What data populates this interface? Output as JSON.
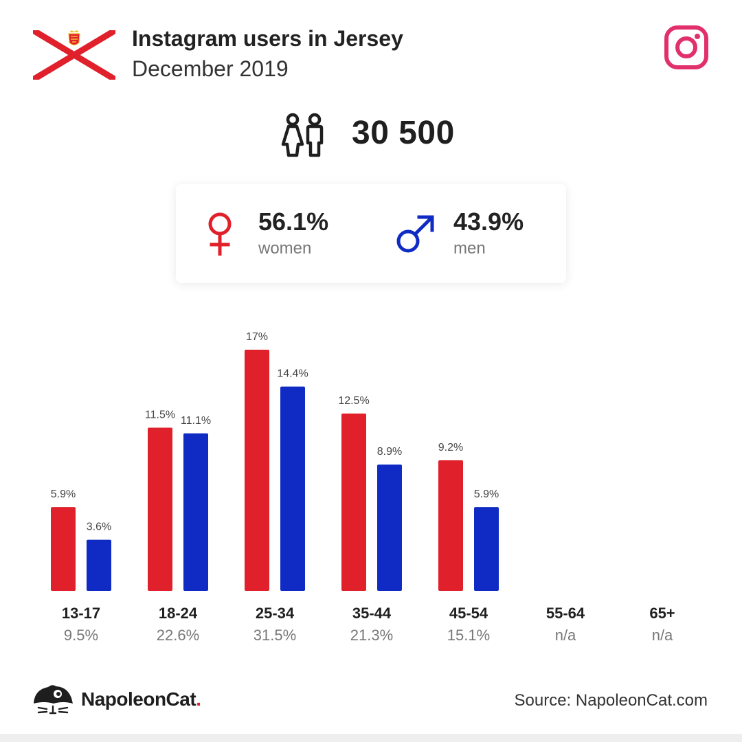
{
  "header": {
    "title": "Instagram users in Jersey",
    "subtitle": "December 2019"
  },
  "summary": {
    "total_users": "30 500"
  },
  "gender": {
    "women_pct": "56.1%",
    "women_label": "women",
    "men_pct": "43.9%",
    "men_label": "men"
  },
  "chart_data": {
    "type": "bar",
    "categories": [
      "13-17",
      "18-24",
      "25-34",
      "35-44",
      "45-54",
      "55-64",
      "65+"
    ],
    "category_totals": [
      "9.5%",
      "22.6%",
      "31.5%",
      "21.3%",
      "15.1%",
      "n/a",
      "n/a"
    ],
    "series": [
      {
        "name": "women",
        "color": "#e0202a",
        "values": [
          5.9,
          11.5,
          17,
          12.5,
          9.2,
          null,
          null
        ],
        "labels": [
          "5.9%",
          "11.5%",
          "17%",
          "12.5%",
          "9.2%",
          "",
          ""
        ]
      },
      {
        "name": "men",
        "color": "#0f2bc4",
        "values": [
          3.6,
          11.1,
          14.4,
          8.9,
          5.9,
          null,
          null
        ],
        "labels": [
          "3.6%",
          "11.1%",
          "14.4%",
          "8.9%",
          "5.9%",
          "",
          ""
        ]
      }
    ],
    "ylim": [
      0,
      17
    ]
  },
  "footer": {
    "brand_name": "NapoleonCat",
    "brand_dot": ".",
    "source": "Source: NapoleonCat.com"
  },
  "colors": {
    "female": "#e0202a",
    "male": "#0f2bc4",
    "instagram": "#e1306c"
  },
  "icons": {
    "flag": "jersey-flag-icon",
    "instagram": "instagram-icon",
    "users": "users-icon",
    "female": "female-icon",
    "male": "male-icon",
    "brand": "napoleoncat-logo-icon"
  }
}
